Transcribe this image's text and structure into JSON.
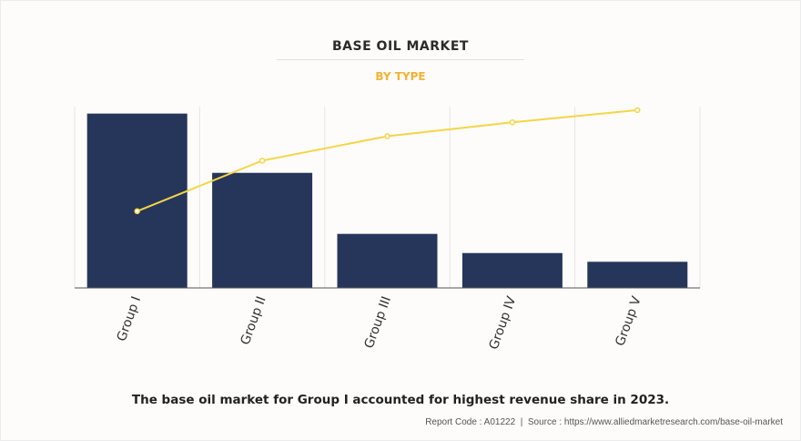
{
  "title": "BASE OIL MARKET",
  "subtitle": "BY TYPE",
  "caption": "The base oil market for Group I accounted for highest revenue share in 2023.",
  "source": {
    "report_code": "Report Code : A01222",
    "separator": "|",
    "source_text": "Source : https://www.alliedmarketresearch.com/base-oil-market"
  },
  "colors": {
    "bar": "#26365a",
    "line": "#f5d547",
    "title": "#2b2b2b",
    "subtitle": "#f2b233",
    "grid": "#e6e6e6",
    "axis": "#555555"
  },
  "chart_data": {
    "type": "bar",
    "categories": [
      "Group I",
      "Group II",
      "Group III",
      "Group IV",
      "Group V"
    ],
    "values": [
      100,
      66,
      31,
      20,
      15
    ],
    "cumulative_line": [
      44,
      73,
      87,
      95,
      102
    ],
    "ylim": [
      0,
      104
    ],
    "xlabel": "",
    "ylabel": "",
    "grid": true,
    "legend": "none",
    "tick_label_rotation": "vertical-ish (-70deg)"
  }
}
